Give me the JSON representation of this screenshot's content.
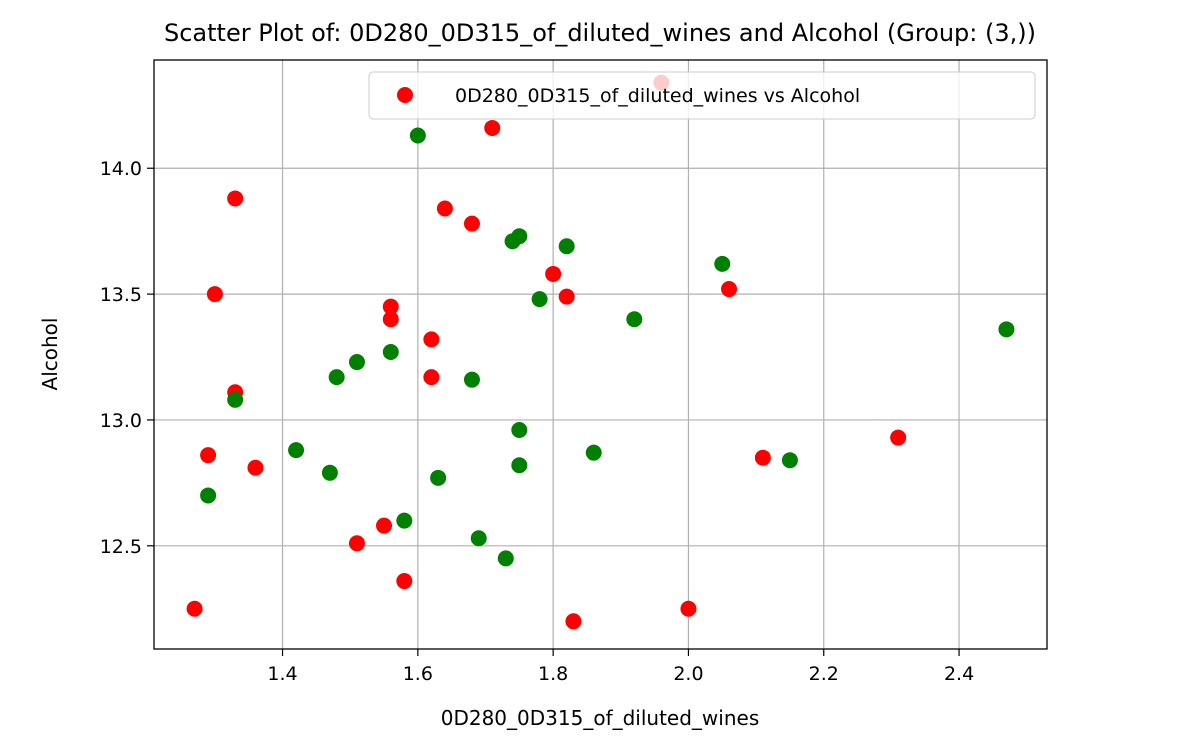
{
  "chart_data": {
    "type": "scatter",
    "title": "Scatter Plot of: 0D280_0D315_of_diluted_wines and Alcohol (Group: (3,))",
    "xlabel": "0D280_0D315_of_diluted_wines",
    "ylabel": "Alcohol",
    "xlim": [
      1.21,
      2.53
    ],
    "ylim": [
      12.09,
      14.43
    ],
    "xticks": [
      1.4,
      1.6,
      1.8,
      2.0,
      2.2,
      2.4
    ],
    "xtick_labels": [
      "1.4",
      "1.6",
      "1.8",
      "2.0",
      "2.2",
      "2.4"
    ],
    "yticks": [
      12.5,
      13.0,
      13.5,
      14.0
    ],
    "ytick_labels": [
      "12.5",
      "13.0",
      "13.5",
      "14.0"
    ],
    "grid": true,
    "legend": {
      "position": "top-right",
      "entries": [
        "0D280_0D315_of_diluted_wines vs Alcohol"
      ]
    },
    "colors": {
      "red": "#ff0000",
      "green": "#008000",
      "axis": "#000000",
      "grid": "#b0b0b0"
    },
    "series": [
      {
        "name": "0D280_0D315_of_diluted_wines vs Alcohol",
        "color": "#ff0000",
        "x": [
          1.96,
          1.71,
          1.33,
          1.64,
          1.68,
          1.3,
          1.8,
          1.82,
          2.06,
          1.56,
          1.56,
          1.62,
          1.62,
          1.33,
          1.29,
          1.36,
          2.31,
          2.11,
          1.55,
          1.51,
          1.58,
          1.27,
          2.0,
          1.83
        ],
        "y": [
          14.34,
          14.16,
          13.88,
          13.84,
          13.78,
          13.5,
          13.58,
          13.49,
          13.52,
          13.45,
          13.4,
          13.32,
          13.17,
          13.11,
          12.86,
          12.81,
          12.93,
          12.85,
          12.58,
          12.51,
          12.36,
          12.25,
          12.25,
          12.2
        ]
      },
      {
        "color": "#008000",
        "x": [
          1.6,
          1.74,
          1.75,
          1.82,
          2.05,
          1.78,
          1.92,
          2.47,
          1.51,
          1.56,
          1.48,
          1.68,
          1.33,
          1.75,
          1.42,
          1.86,
          1.47,
          1.75,
          1.63,
          1.29,
          1.58,
          1.69,
          1.73,
          2.15
        ],
        "y": [
          14.13,
          13.71,
          13.73,
          13.69,
          13.62,
          13.48,
          13.4,
          13.36,
          13.23,
          13.27,
          13.17,
          13.16,
          13.08,
          12.96,
          12.88,
          12.87,
          12.79,
          12.82,
          12.77,
          12.7,
          12.6,
          12.53,
          12.45,
          12.84
        ]
      }
    ]
  }
}
